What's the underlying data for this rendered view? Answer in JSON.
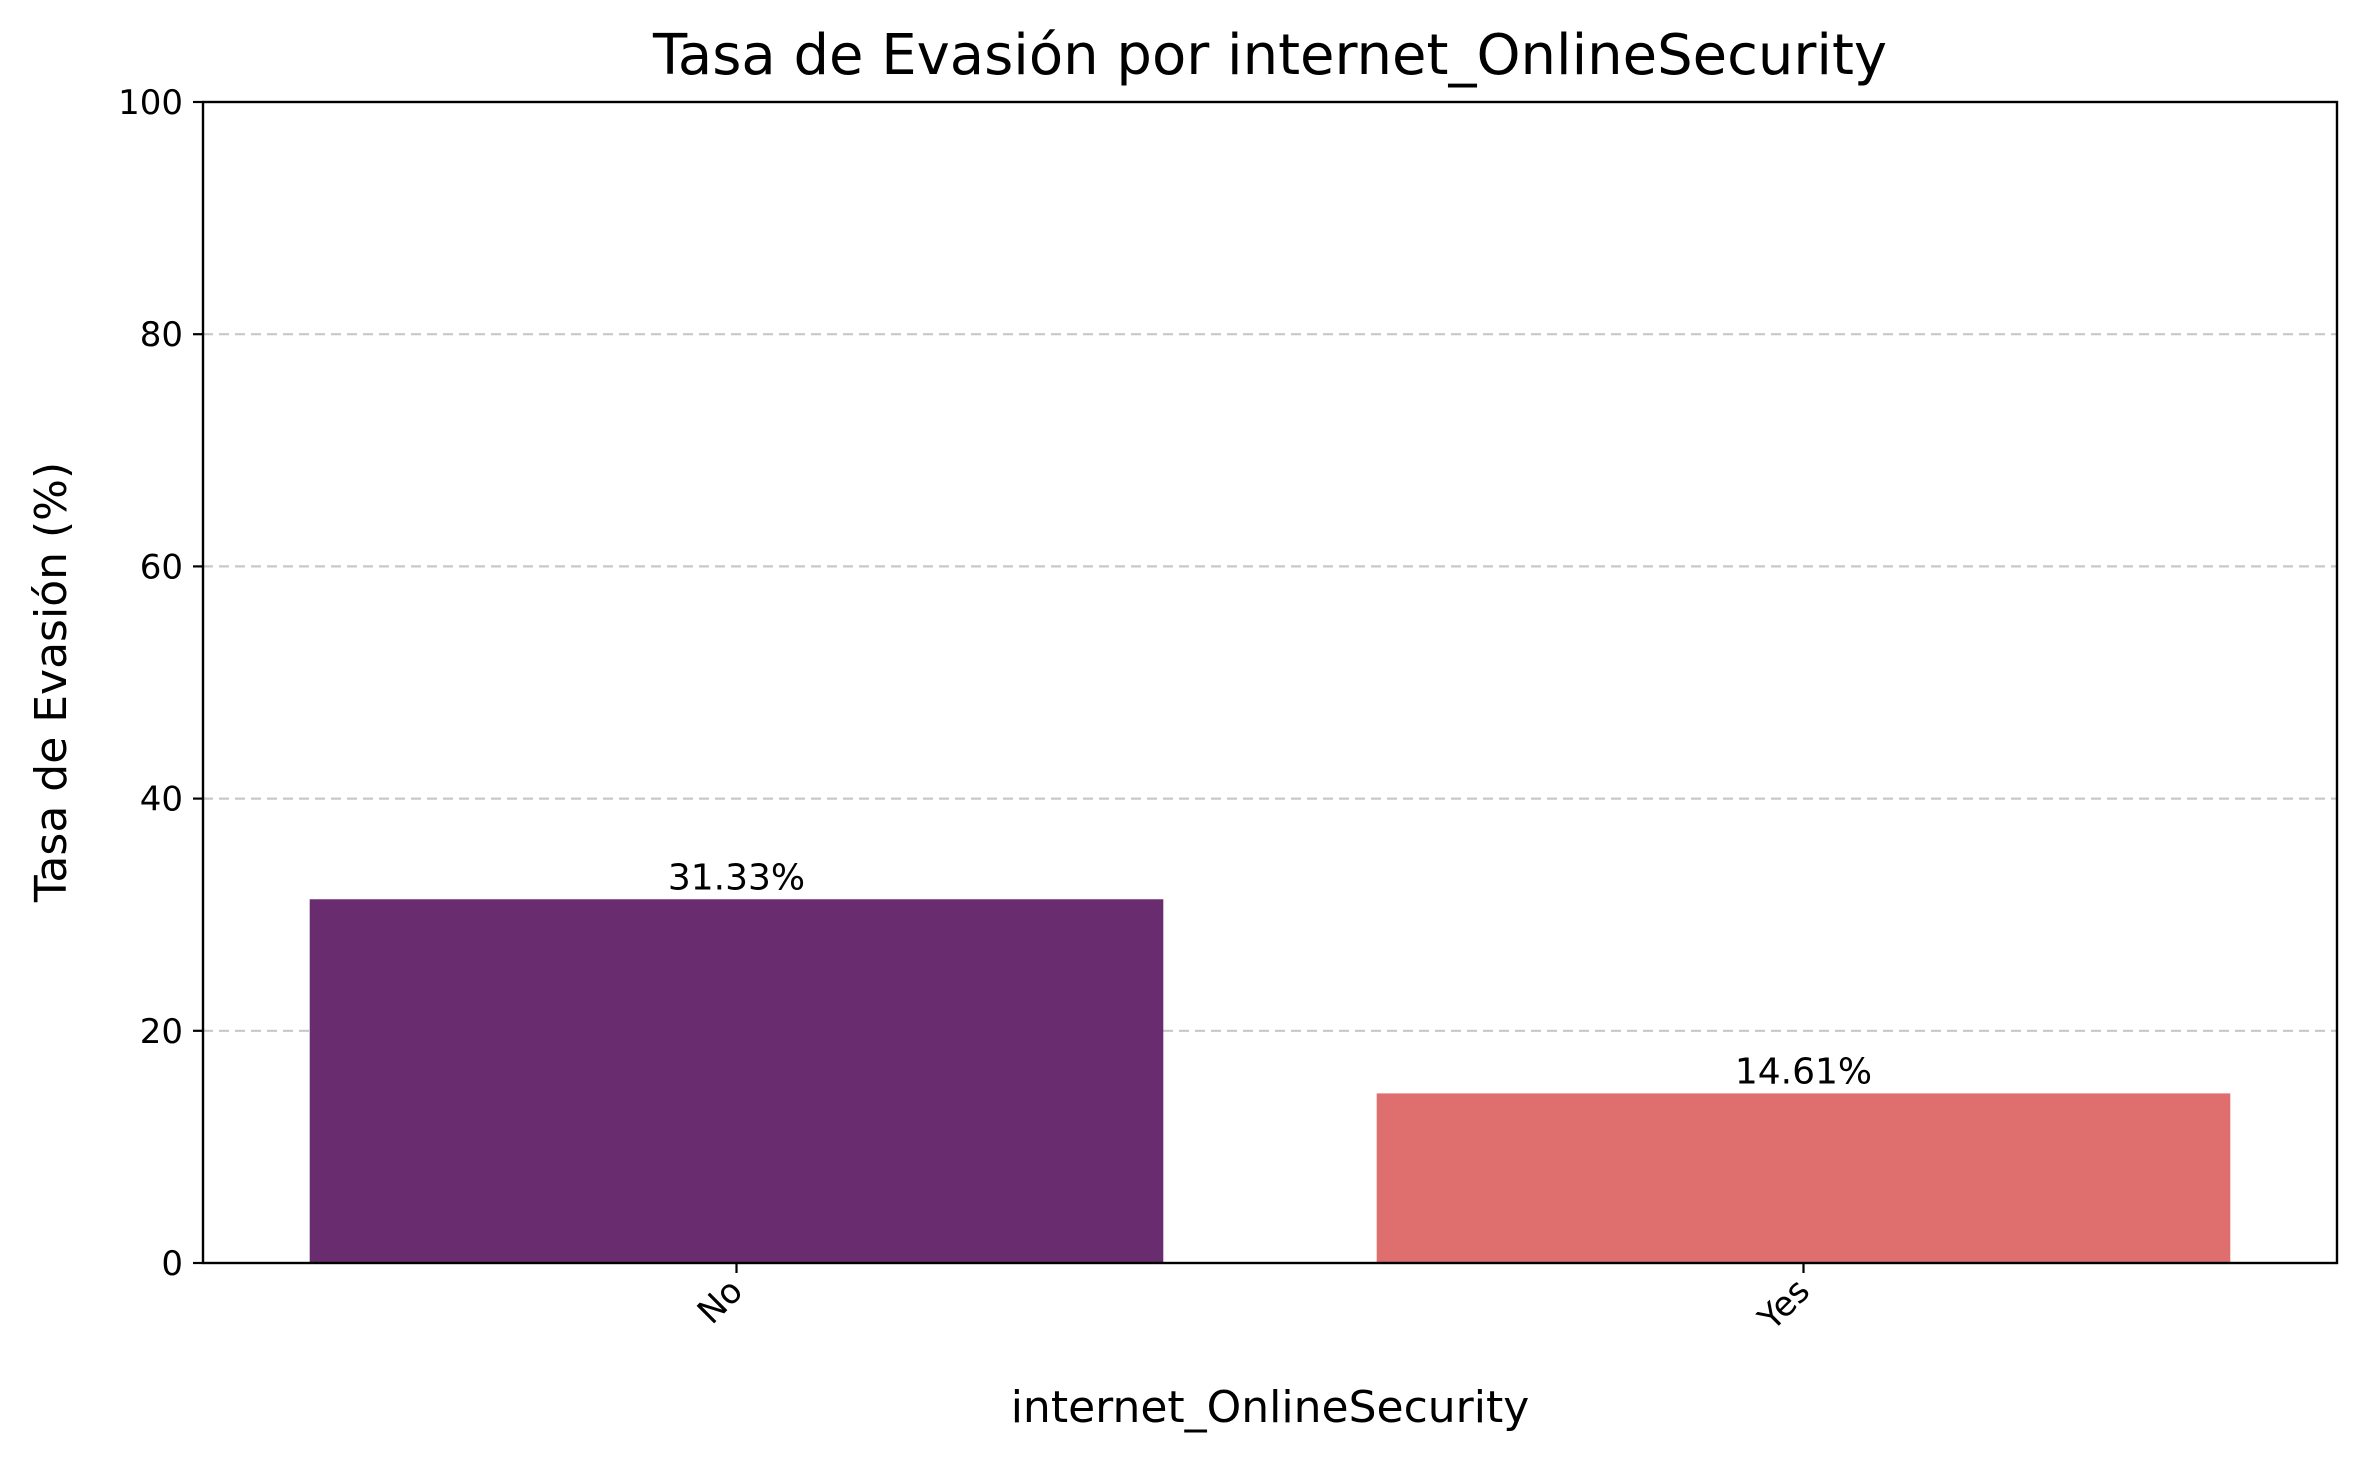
{
  "chart_data": {
    "type": "bar",
    "title": "Tasa de Evasión por internet_OnlineSecurity",
    "xlabel": "internet_OnlineSecurity",
    "ylabel": "Tasa de Evasión (%)",
    "categories": [
      "No",
      "Yes"
    ],
    "values": [
      31.33,
      14.61
    ],
    "data_labels": [
      "31.33%",
      "14.61%"
    ],
    "colors": [
      "#682c6f",
      "#df6f6f"
    ],
    "ylim": [
      0,
      100
    ],
    "yticks": [
      0,
      20,
      40,
      60,
      80,
      100
    ],
    "ytick_labels": [
      "0",
      "20",
      "40",
      "60",
      "80",
      "100"
    ],
    "grid": "y-dashed",
    "legend": "none"
  }
}
